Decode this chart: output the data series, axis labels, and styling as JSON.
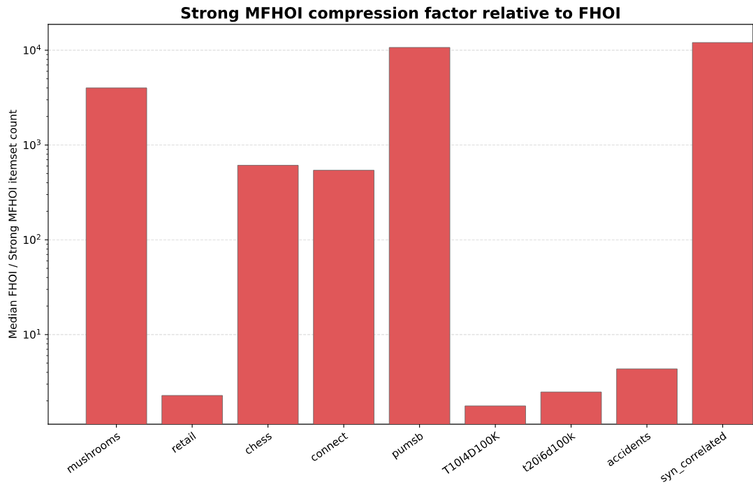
{
  "chart_data": {
    "type": "bar",
    "title": "Strong MFHOI compression factor relative to FHOI",
    "ylabel": "Median FHOI / Strong MFHOI itemset count",
    "categories": [
      "mushrooms",
      "retail",
      "chess",
      "connect",
      "pumsb",
      "T10I4D100K",
      "t20i6d100k",
      "accidents",
      "syn_correlated"
    ],
    "values": [
      4000,
      2.28,
      611,
      542,
      10700,
      1.77,
      2.48,
      4.35,
      12050
    ],
    "color": "#e05759",
    "log": true,
    "ylim": [
      1.135,
      18750
    ],
    "yticks": [
      {
        "value": 10,
        "label": "10$^{1}$"
      },
      {
        "value": 100,
        "label": "10$^{2}$"
      },
      {
        "value": 1000,
        "label": "10$^{3}$"
      },
      {
        "value": 10000,
        "label": "10$^{4}$"
      }
    ],
    "grid": "y"
  }
}
